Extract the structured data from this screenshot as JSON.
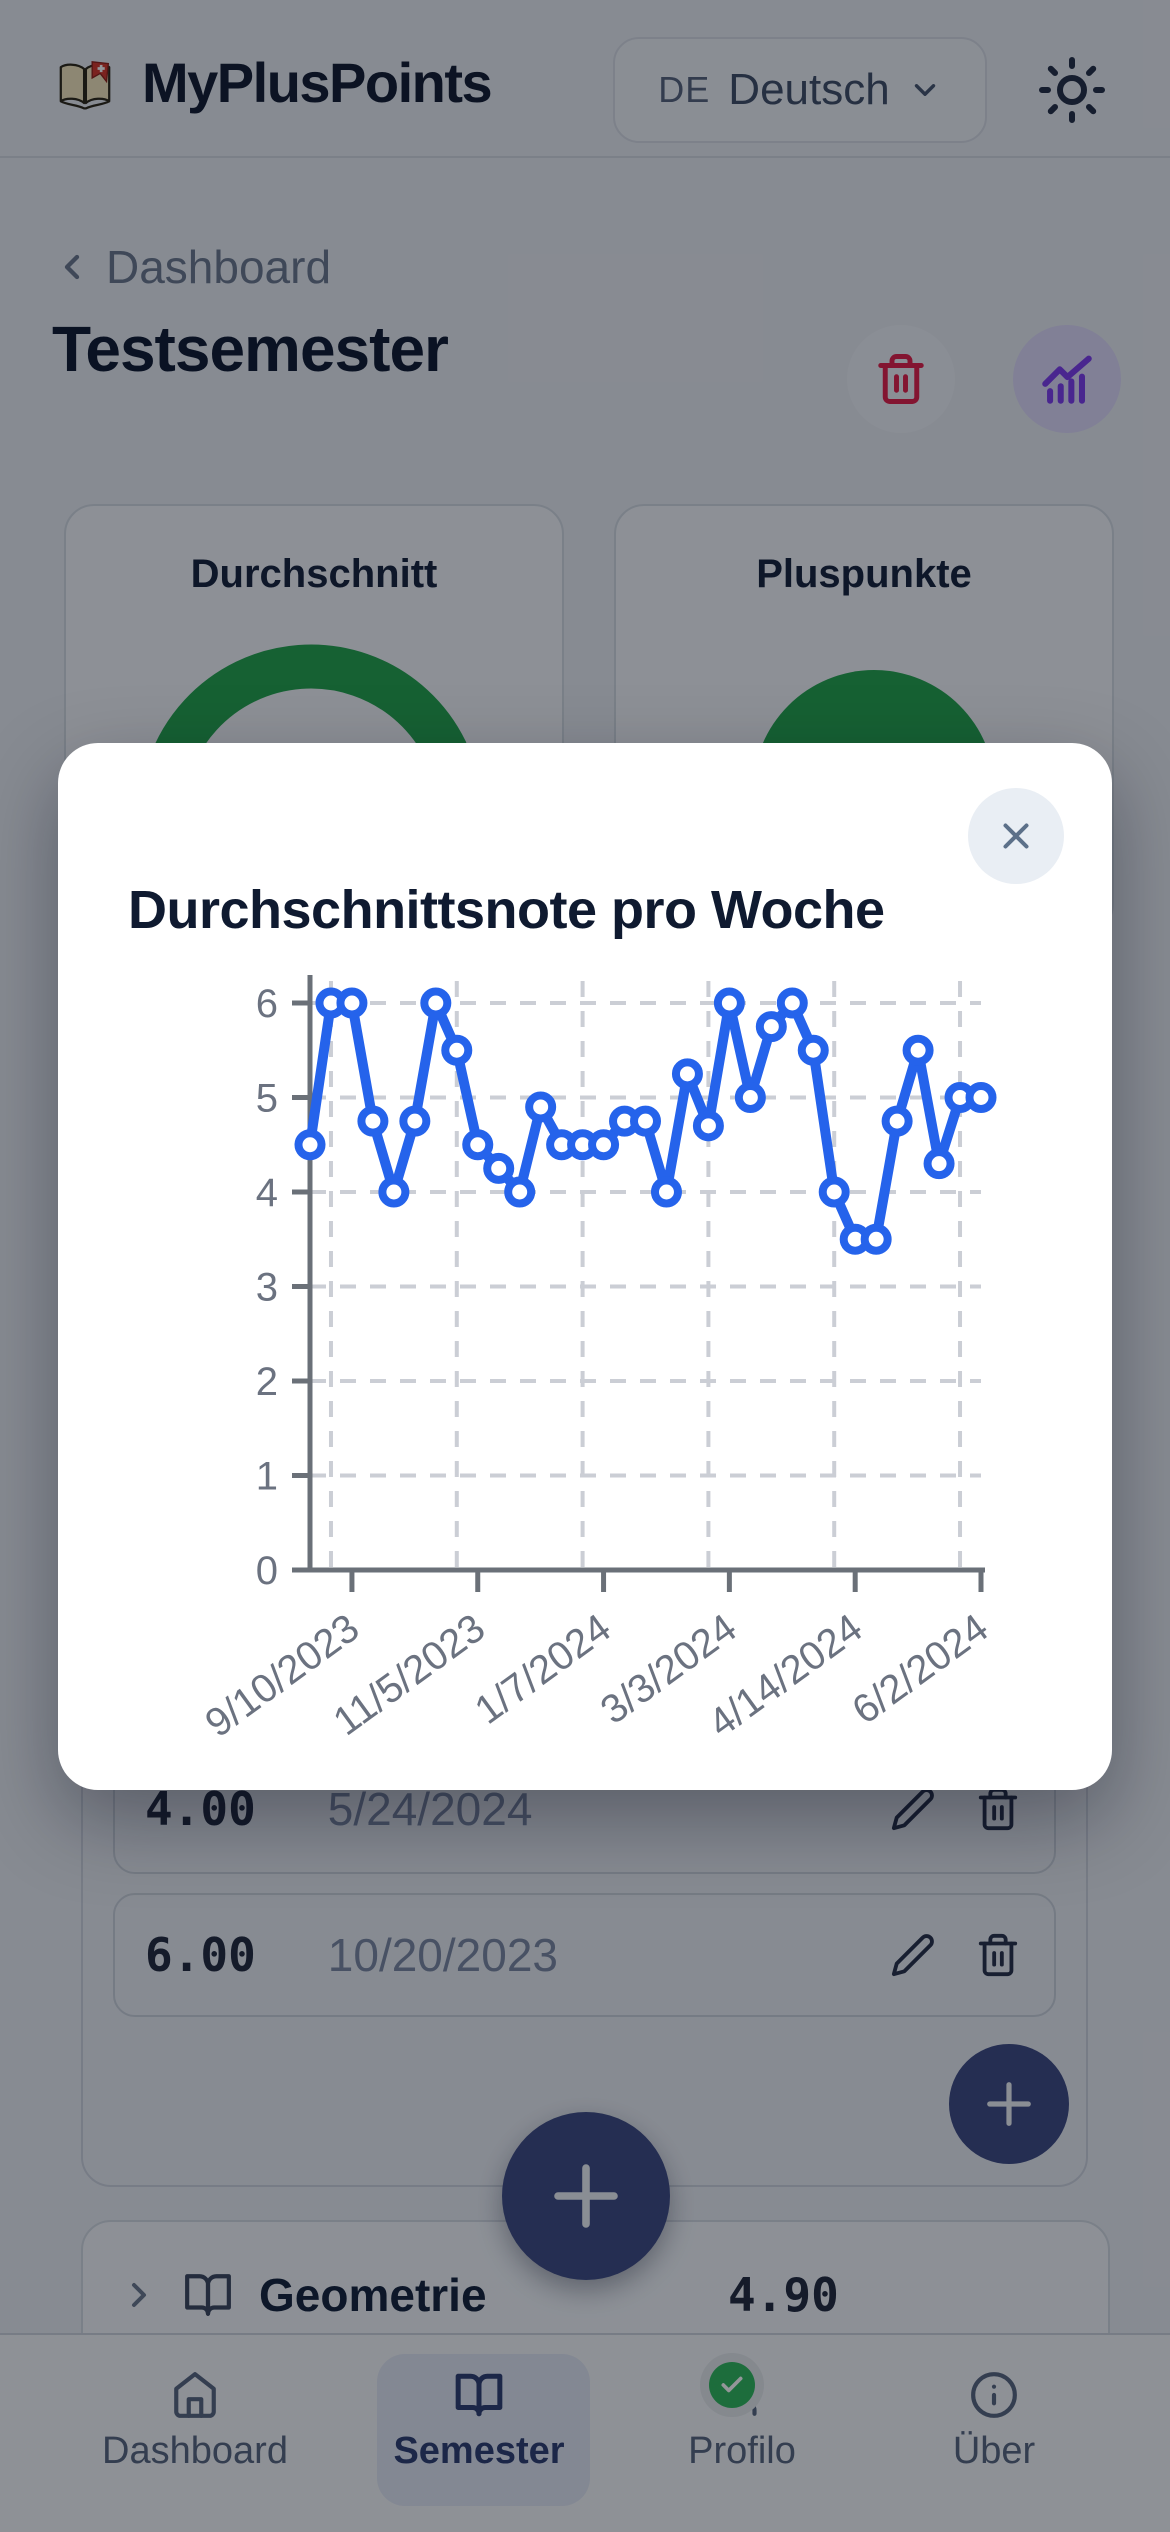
{
  "header": {
    "app_name": "MyPlusPoints",
    "language_code": "DE",
    "language_label": "Deutsch"
  },
  "nav": {
    "back_label": "Dashboard"
  },
  "page": {
    "title": "Testsemester"
  },
  "stat_cards": [
    {
      "title": "Durchschnitt"
    },
    {
      "title": "Pluspunkte"
    }
  ],
  "modal": {
    "title": "Durchschnittsnote pro Woche"
  },
  "chart_data": {
    "type": "line",
    "title": "Durchschnittsnote pro Woche",
    "xlabel": "",
    "ylabel": "",
    "ylim": [
      0,
      6
    ],
    "yticks": [
      0,
      1,
      2,
      3,
      4,
      5,
      6
    ],
    "x_tick_labels": [
      "9/10/2023",
      "11/5/2023",
      "1/7/2024",
      "3/3/2024",
      "4/14/2024",
      "6/2/2024"
    ],
    "tick_indices": [
      2,
      8,
      14,
      20,
      26,
      32
    ],
    "grid_indices": [
      1,
      7,
      13,
      19,
      25,
      31
    ],
    "grid": "dashed",
    "legend": "none",
    "line_color": "#2563eb",
    "marker": "open-circle",
    "series": [
      {
        "name": "Durchschnittsnote",
        "values": [
          4.5,
          6,
          6,
          4.75,
          4,
          4.75,
          6,
          5.5,
          4.5,
          4.25,
          4,
          4.9,
          4.5,
          4.5,
          4.5,
          4.75,
          4.75,
          4,
          5.25,
          4.7,
          6,
          5,
          5.75,
          6,
          5.5,
          4,
          3.5,
          3.5,
          4.75,
          5.5,
          4.3,
          5,
          5
        ]
      }
    ]
  },
  "grades": [
    {
      "value": "4.00",
      "date": "5/24/2024"
    },
    {
      "value": "6.00",
      "date": "10/20/2023"
    }
  ],
  "subject": {
    "name": "Geometrie",
    "average": "4.90"
  },
  "tabbar": {
    "active": "Semester",
    "items": [
      {
        "label": "Dashboard",
        "icon": "home-icon"
      },
      {
        "label": "Semester",
        "icon": "open-book-icon"
      },
      {
        "label": "Profilo",
        "icon": "person-icon"
      },
      {
        "label": "Über",
        "icon": "info-icon"
      }
    ]
  },
  "colors": {
    "accent_blue": "#2563eb",
    "danger_red": "#e11d48",
    "accent_purple": "#7c3aed",
    "green": "#22a24d",
    "fab_navy": "#3c4882"
  }
}
